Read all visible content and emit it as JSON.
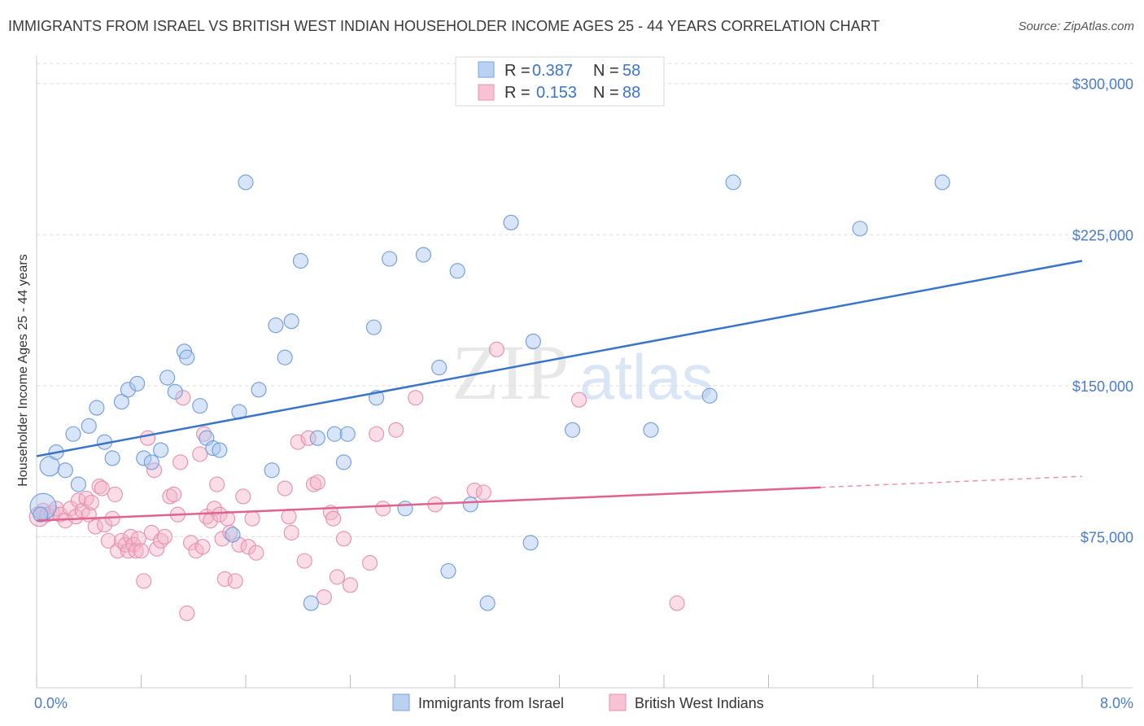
{
  "title": "IMMIGRANTS FROM ISRAEL VS BRITISH WEST INDIAN HOUSEHOLDER INCOME AGES 25 - 44 YEARS CORRELATION CHART",
  "source": "Source: ZipAtlas.com",
  "watermark": {
    "zip": "ZIP",
    "atlas": "atlas"
  },
  "legend_top": [
    {
      "r_label": "R =",
      "r_value": "0.387",
      "n_label": "N =",
      "n_value": "58"
    },
    {
      "r_label": "R =",
      "r_value": "0.153",
      "n_label": "N =",
      "n_value": "88"
    }
  ],
  "colors": {
    "blue": "#3a74c8",
    "blue_fill": "#a9c6ef",
    "pink": "#e0628f",
    "pink_fill": "#f5b3c8",
    "grid": "#dddddd",
    "axis_text": "#4a7cc7"
  },
  "chart_data": {
    "type": "scatter",
    "title": "IMMIGRANTS FROM ISRAEL VS BRITISH WEST INDIAN HOUSEHOLDER INCOME AGES 25 - 44 YEARS CORRELATION CHART",
    "xlabel": "",
    "ylabel": "Householder Income Ages 25 - 44 years",
    "xlim": [
      0,
      8
    ],
    "ylim": [
      0,
      310000
    ],
    "x_tick_labels": [
      "0.0%",
      "8.0%"
    ],
    "y_ticks": [
      75000,
      150000,
      225000,
      300000
    ],
    "y_tick_labels": [
      "$75,000",
      "$150,000",
      "$225,000",
      "$300,000"
    ],
    "grid": true,
    "series": [
      {
        "name": "Immigrants from Israel",
        "color": "#3a74c8",
        "trend": {
          "x": [
            0,
            8
          ],
          "y": [
            115000,
            212000
          ],
          "dashed_from": null
        },
        "points": [
          {
            "x": 0.05,
            "y": 90000,
            "s": 16
          },
          {
            "x": 0.1,
            "y": 110000,
            "s": 12
          },
          {
            "x": 0.15,
            "y": 117000
          },
          {
            "x": 0.22,
            "y": 108000
          },
          {
            "x": 0.28,
            "y": 126000
          },
          {
            "x": 0.32,
            "y": 101000
          },
          {
            "x": 0.4,
            "y": 130000
          },
          {
            "x": 0.46,
            "y": 139000
          },
          {
            "x": 0.52,
            "y": 122000
          },
          {
            "x": 0.58,
            "y": 114000
          },
          {
            "x": 0.65,
            "y": 142000
          },
          {
            "x": 0.7,
            "y": 148000
          },
          {
            "x": 0.77,
            "y": 151000
          },
          {
            "x": 0.82,
            "y": 114000
          },
          {
            "x": 0.88,
            "y": 112000
          },
          {
            "x": 0.95,
            "y": 118000
          },
          {
            "x": 1.0,
            "y": 154000
          },
          {
            "x": 1.06,
            "y": 147000
          },
          {
            "x": 1.13,
            "y": 167000
          },
          {
            "x": 1.15,
            "y": 164000
          },
          {
            "x": 1.25,
            "y": 140000
          },
          {
            "x": 1.3,
            "y": 124000
          },
          {
            "x": 1.35,
            "y": 119000
          },
          {
            "x": 1.4,
            "y": 118000
          },
          {
            "x": 1.5,
            "y": 76000
          },
          {
            "x": 1.55,
            "y": 137000
          },
          {
            "x": 1.6,
            "y": 251000
          },
          {
            "x": 1.7,
            "y": 148000
          },
          {
            "x": 1.8,
            "y": 108000
          },
          {
            "x": 1.83,
            "y": 180000
          },
          {
            "x": 1.9,
            "y": 164000
          },
          {
            "x": 1.95,
            "y": 182000
          },
          {
            "x": 2.02,
            "y": 212000
          },
          {
            "x": 2.1,
            "y": 42000
          },
          {
            "x": 2.15,
            "y": 124000
          },
          {
            "x": 2.28,
            "y": 126000
          },
          {
            "x": 2.35,
            "y": 112000
          },
          {
            "x": 2.38,
            "y": 126000
          },
          {
            "x": 2.58,
            "y": 179000
          },
          {
            "x": 2.6,
            "y": 144000
          },
          {
            "x": 2.7,
            "y": 213000
          },
          {
            "x": 2.82,
            "y": 89000
          },
          {
            "x": 2.96,
            "y": 215000
          },
          {
            "x": 3.08,
            "y": 159000
          },
          {
            "x": 3.15,
            "y": 58000
          },
          {
            "x": 3.22,
            "y": 207000
          },
          {
            "x": 3.32,
            "y": 91000
          },
          {
            "x": 3.45,
            "y": 42000
          },
          {
            "x": 3.63,
            "y": 231000
          },
          {
            "x": 3.78,
            "y": 72000
          },
          {
            "x": 3.8,
            "y": 172000
          },
          {
            "x": 4.1,
            "y": 128000
          },
          {
            "x": 4.7,
            "y": 128000
          },
          {
            "x": 5.15,
            "y": 145000
          },
          {
            "x": 5.33,
            "y": 251000
          },
          {
            "x": 6.3,
            "y": 228000
          },
          {
            "x": 6.93,
            "y": 251000
          },
          {
            "x": 0.03,
            "y": 86000
          }
        ]
      },
      {
        "name": "British West Indians",
        "color": "#e0628f",
        "trend": {
          "x": [
            0,
            8
          ],
          "y": [
            83000,
            105000
          ],
          "dashed_from": 6.0
        },
        "points": [
          {
            "x": 0.02,
            "y": 85000,
            "s": 12
          },
          {
            "x": 0.05,
            "y": 88000
          },
          {
            "x": 0.08,
            "y": 86000
          },
          {
            "x": 0.12,
            "y": 87000
          },
          {
            "x": 0.15,
            "y": 89000
          },
          {
            "x": 0.18,
            "y": 86000
          },
          {
            "x": 0.22,
            "y": 83000
          },
          {
            "x": 0.26,
            "y": 89000
          },
          {
            "x": 0.3,
            "y": 85000
          },
          {
            "x": 0.32,
            "y": 93000
          },
          {
            "x": 0.35,
            "y": 88000
          },
          {
            "x": 0.38,
            "y": 94000
          },
          {
            "x": 0.4,
            "y": 86000
          },
          {
            "x": 0.42,
            "y": 92000
          },
          {
            "x": 0.45,
            "y": 80000
          },
          {
            "x": 0.48,
            "y": 100000
          },
          {
            "x": 0.5,
            "y": 99000
          },
          {
            "x": 0.52,
            "y": 81000
          },
          {
            "x": 0.55,
            "y": 73000
          },
          {
            "x": 0.58,
            "y": 84000
          },
          {
            "x": 0.6,
            "y": 96000
          },
          {
            "x": 0.62,
            "y": 68000
          },
          {
            "x": 0.65,
            "y": 73000
          },
          {
            "x": 0.68,
            "y": 71000
          },
          {
            "x": 0.7,
            "y": 68000
          },
          {
            "x": 0.72,
            "y": 75000
          },
          {
            "x": 0.74,
            "y": 71000
          },
          {
            "x": 0.76,
            "y": 68000
          },
          {
            "x": 0.78,
            "y": 74000
          },
          {
            "x": 0.8,
            "y": 68000
          },
          {
            "x": 0.82,
            "y": 53000
          },
          {
            "x": 0.85,
            "y": 124000
          },
          {
            "x": 0.88,
            "y": 77000
          },
          {
            "x": 0.9,
            "y": 108000
          },
          {
            "x": 0.92,
            "y": 69000
          },
          {
            "x": 0.95,
            "y": 73000
          },
          {
            "x": 0.98,
            "y": 75000
          },
          {
            "x": 1.02,
            "y": 95000
          },
          {
            "x": 1.05,
            "y": 96000
          },
          {
            "x": 1.08,
            "y": 86000
          },
          {
            "x": 1.1,
            "y": 112000
          },
          {
            "x": 1.12,
            "y": 144000
          },
          {
            "x": 1.15,
            "y": 37000
          },
          {
            "x": 1.18,
            "y": 72000
          },
          {
            "x": 1.22,
            "y": 68000
          },
          {
            "x": 1.25,
            "y": 116000
          },
          {
            "x": 1.27,
            "y": 70000
          },
          {
            "x": 1.28,
            "y": 126000
          },
          {
            "x": 1.3,
            "y": 85000
          },
          {
            "x": 1.33,
            "y": 83000
          },
          {
            "x": 1.36,
            "y": 89000
          },
          {
            "x": 1.38,
            "y": 101000
          },
          {
            "x": 1.4,
            "y": 86000
          },
          {
            "x": 1.42,
            "y": 74000
          },
          {
            "x": 1.44,
            "y": 54000
          },
          {
            "x": 1.46,
            "y": 84000
          },
          {
            "x": 1.48,
            "y": 77000
          },
          {
            "x": 1.52,
            "y": 53000
          },
          {
            "x": 1.55,
            "y": 71000
          },
          {
            "x": 1.58,
            "y": 95000
          },
          {
            "x": 1.62,
            "y": 70000
          },
          {
            "x": 1.65,
            "y": 84000
          },
          {
            "x": 1.68,
            "y": 67000
          },
          {
            "x": 1.9,
            "y": 99000
          },
          {
            "x": 1.93,
            "y": 85000
          },
          {
            "x": 1.95,
            "y": 77000
          },
          {
            "x": 2.0,
            "y": 122000
          },
          {
            "x": 2.05,
            "y": 63000
          },
          {
            "x": 2.08,
            "y": 124000
          },
          {
            "x": 2.12,
            "y": 101000
          },
          {
            "x": 2.15,
            "y": 102000
          },
          {
            "x": 2.2,
            "y": 45000
          },
          {
            "x": 2.25,
            "y": 87000
          },
          {
            "x": 2.27,
            "y": 84000
          },
          {
            "x": 2.3,
            "y": 55000
          },
          {
            "x": 2.35,
            "y": 74000
          },
          {
            "x": 2.4,
            "y": 51000
          },
          {
            "x": 2.55,
            "y": 62000
          },
          {
            "x": 2.6,
            "y": 126000
          },
          {
            "x": 2.65,
            "y": 89000
          },
          {
            "x": 2.75,
            "y": 128000
          },
          {
            "x": 2.9,
            "y": 144000
          },
          {
            "x": 3.05,
            "y": 91000
          },
          {
            "x": 3.35,
            "y": 98000
          },
          {
            "x": 3.42,
            "y": 97000
          },
          {
            "x": 3.52,
            "y": 168000
          },
          {
            "x": 4.15,
            "y": 143000
          },
          {
            "x": 4.9,
            "y": 42000
          }
        ]
      }
    ]
  },
  "bottom_legend": [
    "Immigrants from Israel",
    "British West Indians"
  ]
}
